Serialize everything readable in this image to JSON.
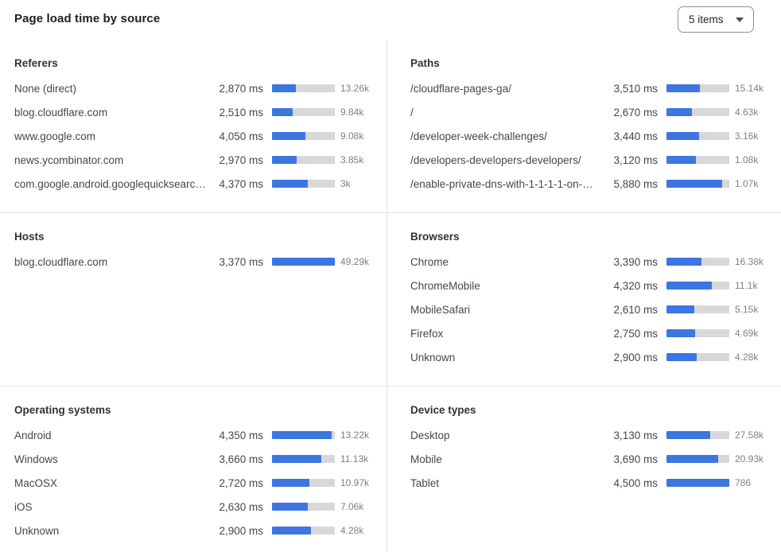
{
  "header": {
    "title": "Page load time by source",
    "items_select": {
      "label": "5 items"
    }
  },
  "colors": {
    "bar_fill": "#3B76E1",
    "bar_track": "#D8D8D8",
    "divider": "#E4E4E4",
    "text_primary": "#1D1F23",
    "text_secondary": "#43474C",
    "text_muted": "#7C8086",
    "dropdown_border": "#8D9196"
  },
  "sections": [
    {
      "id": "referers",
      "title": "Referers",
      "rows": [
        {
          "label": "None (direct)",
          "ms": "2,870 ms",
          "count": "13.26k",
          "bar_pct": 38
        },
        {
          "label": "blog.cloudflare.com",
          "ms": "2,510 ms",
          "count": "9.84k",
          "bar_pct": 33
        },
        {
          "label": "www.google.com",
          "ms": "4,050 ms",
          "count": "9.08k",
          "bar_pct": 53
        },
        {
          "label": "news.ycombinator.com",
          "ms": "2,970 ms",
          "count": "3.85k",
          "bar_pct": 39
        },
        {
          "label": "com.google.android.googlequicksearc…",
          "ms": "4,370 ms",
          "count": "3k",
          "bar_pct": 57
        }
      ]
    },
    {
      "id": "paths",
      "title": "Paths",
      "rows": [
        {
          "label": "/cloudflare-pages-ga/",
          "ms": "3,510 ms",
          "count": "15.14k",
          "bar_pct": 53
        },
        {
          "label": "/",
          "ms": "2,670 ms",
          "count": "4.63k",
          "bar_pct": 40
        },
        {
          "label": "/developer-week-challenges/",
          "ms": "3,440 ms",
          "count": "3.16k",
          "bar_pct": 52
        },
        {
          "label": "/developers-developers-developers/",
          "ms": "3,120 ms",
          "count": "1.08k",
          "bar_pct": 47
        },
        {
          "label": "/enable-private-dns-with-1-1-1-1-on-…",
          "ms": "5,880 ms",
          "count": "1.07k",
          "bar_pct": 89
        }
      ]
    },
    {
      "id": "hosts",
      "title": "Hosts",
      "rows": [
        {
          "label": "blog.cloudflare.com",
          "ms": "3,370 ms",
          "count": "49.29k",
          "bar_pct": 100
        }
      ]
    },
    {
      "id": "browsers",
      "title": "Browsers",
      "rows": [
        {
          "label": "Chrome",
          "ms": "3,390 ms",
          "count": "16.38k",
          "bar_pct": 56
        },
        {
          "label": "ChromeMobile",
          "ms": "4,320 ms",
          "count": "11.1k",
          "bar_pct": 72
        },
        {
          "label": "MobileSafari",
          "ms": "2,610 ms",
          "count": "5.15k",
          "bar_pct": 44
        },
        {
          "label": "Firefox",
          "ms": "2,750 ms",
          "count": "4.69k",
          "bar_pct": 46
        },
        {
          "label": "Unknown",
          "ms": "2,900 ms",
          "count": "4.28k",
          "bar_pct": 48
        }
      ]
    },
    {
      "id": "operating-systems",
      "title": "Operating systems",
      "rows": [
        {
          "label": "Android",
          "ms": "4,350 ms",
          "count": "13.22k",
          "bar_pct": 95
        },
        {
          "label": "Windows",
          "ms": "3,660 ms",
          "count": "11.13k",
          "bar_pct": 79
        },
        {
          "label": "MacOSX",
          "ms": "2,720 ms",
          "count": "10.97k",
          "bar_pct": 59
        },
        {
          "label": "iOS",
          "ms": "2,630 ms",
          "count": "7.06k",
          "bar_pct": 57
        },
        {
          "label": "Unknown",
          "ms": "2,900 ms",
          "count": "4.28k",
          "bar_pct": 62
        }
      ]
    },
    {
      "id": "device-types",
      "title": "Device types",
      "rows": [
        {
          "label": "Desktop",
          "ms": "3,130 ms",
          "count": "27.58k",
          "bar_pct": 70
        },
        {
          "label": "Mobile",
          "ms": "3,690 ms",
          "count": "20.93k",
          "bar_pct": 82
        },
        {
          "label": "Tablet",
          "ms": "4,500 ms",
          "count": "786",
          "bar_pct": 100
        }
      ]
    }
  ]
}
